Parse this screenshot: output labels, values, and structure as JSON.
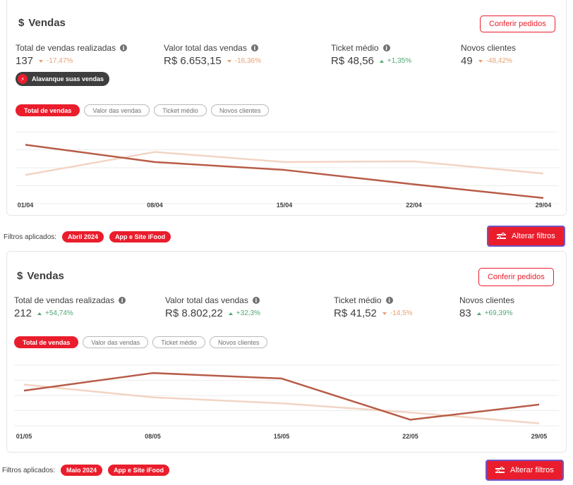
{
  "panels": [
    {
      "title": "Vendas",
      "dollar": "$",
      "orders_button": "Conferir pedidos",
      "metrics": [
        {
          "label": "Total de vendas realizadas",
          "value": "137",
          "change": "-17,47%",
          "trend": "down"
        },
        {
          "label": "Valor total das vendas",
          "value": "R$ 6.653,15",
          "change": "-16,36%",
          "trend": "down"
        },
        {
          "label": "Ticket médio",
          "value": "R$ 48,56",
          "change": "+1,35%",
          "trend": "up"
        },
        {
          "label": "Novos clientes",
          "value": "49",
          "change": "-48,42%",
          "trend": "down"
        }
      ],
      "boost_label": "Alavanque suas vendas",
      "tabs": [
        "Total de vendas",
        "Valor das vendas",
        "Ticket médio",
        "Novos clientes"
      ],
      "active_tab": 0,
      "filters_label": "Filtros aplicados:",
      "filter_chips": [
        "Abril 2024",
        "App e Site iFood"
      ],
      "filters_button": "Alterar filtros",
      "chart_data": {
        "type": "line",
        "x": [
          "01/04",
          "08/04",
          "15/04",
          "22/04",
          "29/04"
        ],
        "series": [
          {
            "values": [
              82,
              58,
              47,
              27,
              8
            ],
            "color": "#b85c48"
          },
          {
            "values": [
              40,
              72,
              58,
              59,
              42
            ],
            "color": "#f2d4c4"
          }
        ],
        "ylim": [
          0,
          100
        ],
        "grid": true
      }
    },
    {
      "title": "Vendas",
      "dollar": "$",
      "orders_button": "Conferir pedidos",
      "metrics": [
        {
          "label": "Total de vendas realizadas",
          "value": "212",
          "change": "+54,74%",
          "trend": "up"
        },
        {
          "label": "Valor total das vendas",
          "value": "R$ 8.802,22",
          "change": "+32,3%",
          "trend": "up"
        },
        {
          "label": "Ticket médio",
          "value": "R$ 41,52",
          "change": "-14,5%",
          "trend": "down"
        },
        {
          "label": "Novos clientes",
          "value": "83",
          "change": "+69,39%",
          "trend": "up"
        }
      ],
      "tabs": [
        "Total de vendas",
        "Valor das vendas",
        "Ticket médio",
        "Novos clientes"
      ],
      "active_tab": 0,
      "filters_label": "Filtros aplicados:",
      "filter_chips": [
        "Maio 2024",
        "App e Site iFood"
      ],
      "filters_button": "Alterar filtros",
      "chart_data": {
        "type": "line",
        "x": [
          "01/05",
          "08/05",
          "15/05",
          "22/05",
          "29/05"
        ],
        "series": [
          {
            "values": [
              58,
              87,
              78,
              10,
              35
            ],
            "color": "#b85c48"
          },
          {
            "values": [
              68,
              47,
              37,
              22,
              4
            ],
            "color": "#f2d4c4"
          }
        ],
        "ylim": [
          0,
          100
        ],
        "grid": true
      }
    }
  ],
  "colors": {
    "brand": "#ea1d2c",
    "dark": "#3e3e3e",
    "up": "#50a773",
    "down": "#e7a074",
    "focus": "#7055c7"
  },
  "icons": {
    "info": "info-icon",
    "boost": "bolt-icon",
    "filters": "sliders-icon",
    "up": "triangle-up-icon",
    "down": "triangle-down-icon"
  }
}
